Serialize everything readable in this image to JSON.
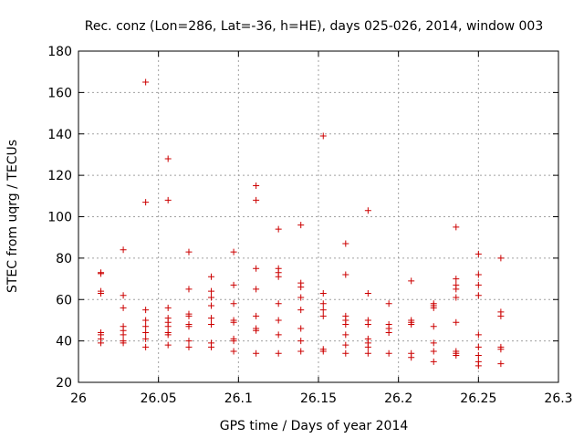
{
  "chart_data": {
    "type": "scatter",
    "title": "Rec. conz (Lon=286, Lat=-36, h=HE), days 025-026, 2014, window 003",
    "xlabel": "GPS time / Days of year 2014",
    "ylabel": "STEC from uqrg / TECUs",
    "xlim": [
      26,
      26.3
    ],
    "ylim": [
      20,
      180
    ],
    "xticks": [
      26,
      26.05,
      26.1,
      26.15,
      26.2,
      26.25,
      26.3
    ],
    "yticks": [
      20,
      40,
      60,
      80,
      100,
      120,
      140,
      160,
      180
    ],
    "xtick_labels": [
      "26",
      "26.05",
      "26.1",
      "26.15",
      "26.2",
      "26.25",
      "26.3"
    ],
    "ytick_labels": [
      "20",
      "40",
      "60",
      "80",
      "100",
      "120",
      "140",
      "160",
      "180"
    ],
    "grid": true,
    "marker": "plus",
    "color": "#cc0000",
    "points": [
      [
        26.014,
        73
      ],
      [
        26.014,
        72.5
      ],
      [
        26.014,
        64
      ],
      [
        26.014,
        63
      ],
      [
        26.014,
        44
      ],
      [
        26.014,
        43
      ],
      [
        26.014,
        41
      ],
      [
        26.014,
        39
      ],
      [
        26.028,
        84
      ],
      [
        26.028,
        62
      ],
      [
        26.028,
        56
      ],
      [
        26.028,
        47
      ],
      [
        26.028,
        45
      ],
      [
        26.028,
        43
      ],
      [
        26.028,
        40
      ],
      [
        26.028,
        39
      ],
      [
        26.042,
        165
      ],
      [
        26.042,
        107
      ],
      [
        26.042,
        55
      ],
      [
        26.042,
        50
      ],
      [
        26.042,
        47
      ],
      [
        26.042,
        44
      ],
      [
        26.042,
        41
      ],
      [
        26.042,
        37
      ],
      [
        26.056,
        128
      ],
      [
        26.056,
        108
      ],
      [
        26.056,
        56
      ],
      [
        26.056,
        51
      ],
      [
        26.056,
        49
      ],
      [
        26.056,
        47
      ],
      [
        26.056,
        44
      ],
      [
        26.056,
        43
      ],
      [
        26.056,
        38
      ],
      [
        26.069,
        83
      ],
      [
        26.069,
        65
      ],
      [
        26.069,
        53
      ],
      [
        26.069,
        52
      ],
      [
        26.069,
        48
      ],
      [
        26.069,
        47
      ],
      [
        26.069,
        40
      ],
      [
        26.069,
        37
      ],
      [
        26.083,
        71
      ],
      [
        26.083,
        64
      ],
      [
        26.083,
        61
      ],
      [
        26.083,
        57
      ],
      [
        26.083,
        51
      ],
      [
        26.083,
        48
      ],
      [
        26.083,
        39
      ],
      [
        26.083,
        37
      ],
      [
        26.097,
        83
      ],
      [
        26.097,
        67
      ],
      [
        26.097,
        58
      ],
      [
        26.097,
        50
      ],
      [
        26.097,
        49
      ],
      [
        26.097,
        41
      ],
      [
        26.097,
        40
      ],
      [
        26.097,
        35
      ],
      [
        26.111,
        115
      ],
      [
        26.111,
        108
      ],
      [
        26.111,
        75
      ],
      [
        26.111,
        65
      ],
      [
        26.111,
        52
      ],
      [
        26.111,
        46
      ],
      [
        26.111,
        45
      ],
      [
        26.111,
        34
      ],
      [
        26.125,
        94
      ],
      [
        26.125,
        75
      ],
      [
        26.125,
        73
      ],
      [
        26.125,
        71
      ],
      [
        26.125,
        58
      ],
      [
        26.125,
        50
      ],
      [
        26.125,
        43
      ],
      [
        26.125,
        34
      ],
      [
        26.139,
        96
      ],
      [
        26.139,
        68
      ],
      [
        26.139,
        66
      ],
      [
        26.139,
        61
      ],
      [
        26.139,
        55
      ],
      [
        26.139,
        46
      ],
      [
        26.139,
        40
      ],
      [
        26.139,
        35
      ],
      [
        26.153,
        139
      ],
      [
        26.153,
        63
      ],
      [
        26.153,
        58
      ],
      [
        26.153,
        55
      ],
      [
        26.153,
        52
      ],
      [
        26.153,
        36
      ],
      [
        26.153,
        35
      ],
      [
        26.167,
        87
      ],
      [
        26.167,
        72
      ],
      [
        26.167,
        52
      ],
      [
        26.167,
        50
      ],
      [
        26.167,
        48
      ],
      [
        26.167,
        43
      ],
      [
        26.167,
        38
      ],
      [
        26.167,
        34
      ],
      [
        26.181,
        103
      ],
      [
        26.181,
        63
      ],
      [
        26.181,
        50
      ],
      [
        26.181,
        48
      ],
      [
        26.181,
        41
      ],
      [
        26.181,
        39
      ],
      [
        26.181,
        37
      ],
      [
        26.181,
        34
      ],
      [
        26.194,
        58
      ],
      [
        26.194,
        48
      ],
      [
        26.194,
        46
      ],
      [
        26.194,
        44
      ],
      [
        26.194,
        34
      ],
      [
        26.208,
        69
      ],
      [
        26.208,
        50
      ],
      [
        26.208,
        49
      ],
      [
        26.208,
        48
      ],
      [
        26.208,
        34
      ],
      [
        26.208,
        32
      ],
      [
        26.222,
        58
      ],
      [
        26.222,
        57
      ],
      [
        26.222,
        56
      ],
      [
        26.222,
        47
      ],
      [
        26.222,
        39
      ],
      [
        26.222,
        35
      ],
      [
        26.222,
        30
      ],
      [
        26.236,
        95
      ],
      [
        26.236,
        70
      ],
      [
        26.236,
        67
      ],
      [
        26.236,
        65
      ],
      [
        26.236,
        61
      ],
      [
        26.236,
        49
      ],
      [
        26.236,
        35
      ],
      [
        26.236,
        34
      ],
      [
        26.236,
        33
      ],
      [
        26.25,
        82
      ],
      [
        26.25,
        72
      ],
      [
        26.25,
        67
      ],
      [
        26.25,
        62
      ],
      [
        26.25,
        43
      ],
      [
        26.25,
        37
      ],
      [
        26.25,
        33
      ],
      [
        26.25,
        30
      ],
      [
        26.25,
        28
      ],
      [
        26.264,
        80
      ],
      [
        26.264,
        54
      ],
      [
        26.264,
        52
      ],
      [
        26.264,
        37
      ],
      [
        26.264,
        36
      ],
      [
        26.264,
        29
      ]
    ]
  }
}
